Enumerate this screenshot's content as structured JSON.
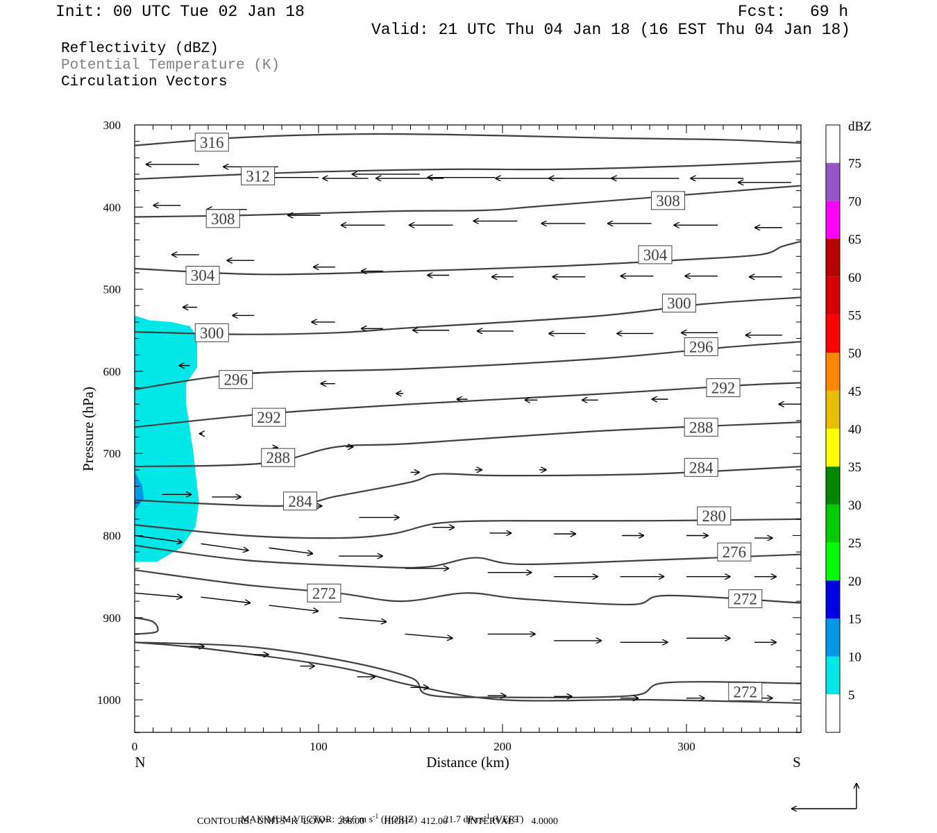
{
  "header": {
    "init": "Init: 00 UTC Tue 02 Jan 18",
    "fcst_label": "Fcst:",
    "fcst_value": "69 h",
    "valid": "Valid: 21 UTC Thu 04 Jan 18 (16 EST Thu 04 Jan 18)"
  },
  "legend": {
    "line1": "Reflectivity (dBZ)",
    "line2": "Potential Temperature (K)",
    "line3": "Circulation Vectors"
  },
  "footer": {
    "max_vector_prefix": "MAXIMUM VECTOR:",
    "horiz_value": "24.6 m s",
    "horiz_suffix": "(HORIZ)",
    "vert_value": "21.7 dPa s",
    "vert_suffix": "(VERT)",
    "exponent": "-1",
    "contours": "CONTOURS:  UNITS=K  LOW=   268.00        HIGH=   412.00        INTERVAL=     4.0000"
  },
  "chart_data": {
    "type": "contour",
    "xlabel": "Distance (km)",
    "ylabel": "Pressure (hPa)",
    "xlim": [
      0,
      362
    ],
    "ylim": [
      300,
      1040
    ],
    "x_ticks": [
      0,
      100,
      200,
      300
    ],
    "y_ticks": [
      300,
      400,
      500,
      600,
      700,
      800,
      900,
      1000
    ],
    "x_left_label": "N",
    "x_right_label": "S",
    "colorbar": {
      "unit": "dBZ",
      "levels": [
        5,
        10,
        15,
        20,
        25,
        30,
        35,
        40,
        45,
        50,
        55,
        60,
        65,
        70,
        75
      ],
      "colors": [
        "#00e8e8",
        "#0098e8",
        "#0000e8",
        "#00ff00",
        "#00cc00",
        "#008800",
        "#ffff00",
        "#e8c000",
        "#ff8800",
        "#ff0000",
        "#d80000",
        "#b80000",
        "#ff00ff",
        "#9855c8",
        "#ffffff"
      ]
    },
    "reflectivity_region": {
      "dbz": 5,
      "points": [
        [
          0,
          532
        ],
        [
          8,
          538
        ],
        [
          20,
          540
        ],
        [
          30,
          545
        ],
        [
          34,
          558
        ],
        [
          34,
          595
        ],
        [
          28,
          615
        ],
        [
          28,
          640
        ],
        [
          32,
          700
        ],
        [
          35,
          760
        ],
        [
          33,
          790
        ],
        [
          25,
          815
        ],
        [
          12,
          832
        ],
        [
          0,
          832
        ]
      ]
    },
    "reflectivity_inner": {
      "dbz": 10,
      "points": [
        [
          0,
          722
        ],
        [
          4,
          738
        ],
        [
          5,
          755
        ],
        [
          0,
          770
        ]
      ]
    },
    "contour_color": "#404040",
    "contours": [
      {
        "value": 316,
        "points": [
          [
            0,
            325
          ],
          [
            60,
            315
          ],
          [
            130,
            311
          ],
          [
            200,
            313
          ],
          [
            260,
            316
          ],
          [
            320,
            318
          ],
          [
            362,
            322
          ]
        ],
        "labels": [
          {
            "text": "316",
            "x": 42,
            "p": 321
          }
        ]
      },
      {
        "value": 312,
        "points": [
          [
            0,
            366
          ],
          [
            50,
            361
          ],
          [
            100,
            357
          ],
          [
            170,
            354
          ],
          [
            230,
            354
          ],
          [
            300,
            350
          ],
          [
            362,
            344
          ]
        ],
        "labels": [
          {
            "text": "312",
            "x": 67,
            "p": 362
          }
        ]
      },
      {
        "value": 308,
        "points": [
          [
            0,
            412
          ],
          [
            60,
            410
          ],
          [
            140,
            405
          ],
          [
            190,
            404
          ],
          [
            220,
            399
          ],
          [
            300,
            385
          ],
          [
            362,
            374
          ]
        ],
        "labels": [
          {
            "text": "308",
            "x": 48,
            "p": 414
          },
          {
            "text": "308",
            "x": 290,
            "p": 392
          }
        ]
      },
      {
        "value": 304,
        "points": [
          [
            0,
            475
          ],
          [
            70,
            482
          ],
          [
            150,
            478
          ],
          [
            230,
            472
          ],
          [
            300,
            464
          ],
          [
            340,
            458
          ],
          [
            352,
            448
          ],
          [
            362,
            442
          ]
        ],
        "labels": [
          {
            "text": "304",
            "x": 37,
            "p": 483
          },
          {
            "text": "304",
            "x": 283,
            "p": 458
          }
        ]
      },
      {
        "value": 300,
        "points": [
          [
            0,
            552
          ],
          [
            60,
            555
          ],
          [
            110,
            553
          ],
          [
            150,
            547
          ],
          [
            250,
            533
          ],
          [
            310,
            518
          ],
          [
            362,
            510
          ]
        ],
        "labels": [
          {
            "text": "300",
            "x": 42,
            "p": 553
          },
          {
            "text": "300",
            "x": 296,
            "p": 517
          }
        ]
      },
      {
        "value": 296,
        "points": [
          [
            0,
            622
          ],
          [
            60,
            603
          ],
          [
            150,
            597
          ],
          [
            250,
            585
          ],
          [
            320,
            571
          ],
          [
            362,
            564
          ]
        ],
        "labels": [
          {
            "text": "296",
            "x": 55,
            "p": 610
          },
          {
            "text": "296",
            "x": 308,
            "p": 570
          }
        ]
      },
      {
        "value": 292,
        "points": [
          [
            0,
            668
          ],
          [
            70,
            652
          ],
          [
            150,
            640
          ],
          [
            250,
            628
          ],
          [
            330,
            617
          ],
          [
            362,
            614
          ]
        ],
        "labels": [
          {
            "text": "292",
            "x": 73,
            "p": 656
          },
          {
            "text": "292",
            "x": 320,
            "p": 620
          }
        ]
      },
      {
        "value": 288,
        "points": [
          [
            0,
            716
          ],
          [
            70,
            712
          ],
          [
            110,
            692
          ],
          [
            150,
            688
          ],
          [
            250,
            673
          ],
          [
            330,
            665
          ],
          [
            362,
            662
          ]
        ],
        "labels": [
          {
            "text": "288",
            "x": 78,
            "p": 705
          },
          {
            "text": "288",
            "x": 308,
            "p": 668
          }
        ]
      },
      {
        "value": 284,
        "points": [
          [
            0,
            757
          ],
          [
            80,
            764
          ],
          [
            110,
            752
          ],
          [
            150,
            735
          ],
          [
            165,
            725
          ],
          [
            200,
            727
          ],
          [
            280,
            725
          ],
          [
            362,
            716
          ]
        ],
        "labels": [
          {
            "text": "284",
            "x": 90,
            "p": 758
          },
          {
            "text": "284",
            "x": 308,
            "p": 717
          }
        ]
      },
      {
        "value": 280,
        "points": [
          [
            0,
            787
          ],
          [
            60,
            800
          ],
          [
            110,
            803
          ],
          [
            140,
            798
          ],
          [
            165,
            785
          ],
          [
            200,
            782
          ],
          [
            280,
            782
          ],
          [
            362,
            780
          ]
        ],
        "labels": [
          {
            "text": "280",
            "x": 315,
            "p": 776
          }
        ]
      },
      {
        "value": 276,
        "points": [
          [
            0,
            812
          ],
          [
            60,
            830
          ],
          [
            130,
            838
          ],
          [
            160,
            838
          ],
          [
            185,
            827
          ],
          [
            210,
            835
          ],
          [
            280,
            830
          ],
          [
            362,
            823
          ]
        ],
        "labels": [
          {
            "text": "276",
            "x": 326,
            "p": 820
          }
        ]
      },
      {
        "value": 272,
        "points": [
          [
            0,
            842
          ],
          [
            60,
            860
          ],
          [
            110,
            870
          ],
          [
            145,
            880
          ],
          [
            180,
            870
          ],
          [
            210,
            877
          ],
          [
            270,
            884
          ],
          [
            290,
            873
          ],
          [
            362,
            882
          ]
        ],
        "labels": [
          {
            "text": "272",
            "x": 103,
            "p": 870
          },
          {
            "text": "272",
            "x": 332,
            "p": 877
          }
        ]
      },
      {
        "value": 272,
        "points": [
          [
            0,
            930
          ],
          [
            60,
            935
          ],
          [
            110,
            951
          ],
          [
            150,
            973
          ],
          [
            160,
            994
          ],
          [
            200,
            997
          ],
          [
            270,
            995
          ],
          [
            290,
            979
          ],
          [
            362,
            980
          ]
        ],
        "labels": [
          {
            "text": "272",
            "x": 332,
            "p": 990
          }
        ]
      },
      {
        "value": 0,
        "points": [
          [
            0,
            930
          ],
          [
            40,
            938
          ],
          [
            110,
            960
          ],
          [
            150,
            982
          ],
          [
            200,
            1000
          ],
          [
            280,
            1000
          ],
          [
            362,
            1004
          ]
        ],
        "labels": []
      },
      {
        "value": 0,
        "points": [
          [
            0,
            900
          ],
          [
            10,
            905
          ],
          [
            12,
            917
          ],
          [
            0,
            920
          ]
        ],
        "labels": []
      }
    ],
    "vectors": [
      [
        35,
        348,
        -29,
        0
      ],
      [
        78,
        351,
        -30,
        0
      ],
      [
        100,
        364,
        -37,
        0
      ],
      [
        127,
        365,
        -25,
        0
      ],
      [
        155,
        360,
        -37,
        0
      ],
      [
        168,
        365,
        -37,
        0
      ],
      [
        196,
        364,
        -37,
        0
      ],
      [
        233,
        365,
        -37,
        0
      ],
      [
        262,
        365,
        -37,
        0
      ],
      [
        296,
        365,
        -37,
        0
      ],
      [
        331,
        365,
        -29,
        0
      ],
      [
        357,
        370,
        -29,
        0
      ],
      [
        25,
        398,
        -15,
        0
      ],
      [
        61,
        403,
        -22,
        0
      ],
      [
        101,
        410,
        -18,
        0
      ],
      [
        136,
        422,
        -24,
        0
      ],
      [
        173,
        422,
        -24,
        0
      ],
      [
        208,
        417,
        -24,
        0
      ],
      [
        245,
        420,
        -24,
        0
      ],
      [
        281,
        420,
        -24,
        0
      ],
      [
        317,
        422,
        -24,
        0
      ],
      [
        352,
        425,
        -15,
        0
      ],
      [
        35,
        458,
        -15,
        0
      ],
      [
        65,
        465,
        -15,
        0
      ],
      [
        109,
        473,
        -12,
        0
      ],
      [
        135,
        478,
        -12,
        0
      ],
      [
        171,
        483,
        -12,
        0
      ],
      [
        206,
        485,
        -12,
        0
      ],
      [
        245,
        485,
        -18,
        0
      ],
      [
        282,
        484,
        -18,
        0
      ],
      [
        317,
        484,
        -18,
        0
      ],
      [
        352,
        485,
        -18,
        0
      ],
      [
        34,
        522,
        -8,
        0
      ],
      [
        65,
        532,
        -12,
        0
      ],
      [
        109,
        540,
        -13,
        0
      ],
      [
        135,
        548,
        -12,
        0
      ],
      [
        171,
        550,
        -20,
        0
      ],
      [
        206,
        551,
        -20,
        0
      ],
      [
        245,
        554,
        -20,
        0
      ],
      [
        282,
        554,
        -20,
        0
      ],
      [
        317,
        553,
        -20,
        0
      ],
      [
        352,
        556,
        -20,
        0
      ],
      [
        30,
        593,
        -6,
        0
      ],
      [
        68,
        602,
        -8,
        0
      ],
      [
        109,
        615,
        -8,
        0
      ],
      [
        146,
        627,
        -4,
        0
      ],
      [
        181,
        634,
        -6,
        0
      ],
      [
        219,
        635,
        -7,
        0
      ],
      [
        252,
        635,
        -9,
        0
      ],
      [
        290,
        634,
        -9,
        0
      ],
      [
        362,
        640,
        -12,
        0
      ],
      [
        37,
        676,
        -2,
        0
      ],
      [
        75,
        693,
        3,
        0
      ],
      [
        115,
        692,
        4,
        0
      ],
      [
        150,
        723,
        5,
        0
      ],
      [
        185,
        720,
        4,
        0
      ],
      [
        220,
        720,
        4,
        0
      ],
      [
        15,
        750,
        16,
        0
      ],
      [
        42,
        753,
        16,
        0
      ],
      [
        86,
        764,
        16,
        0
      ],
      [
        122,
        778,
        22,
        0
      ],
      [
        162,
        790,
        12,
        0
      ],
      [
        193,
        797,
        12,
        0
      ],
      [
        228,
        798,
        12,
        0
      ],
      [
        265,
        800,
        12,
        0
      ],
      [
        300,
        800,
        12,
        0
      ],
      [
        337,
        803,
        10,
        0
      ],
      [
        0,
        800,
        26,
        8
      ],
      [
        36,
        810,
        26,
        8
      ],
      [
        73,
        815,
        24,
        7
      ],
      [
        111,
        825,
        24,
        0
      ],
      [
        147,
        840,
        24,
        0
      ],
      [
        192,
        845,
        24,
        0
      ],
      [
        228,
        850,
        24,
        0
      ],
      [
        264,
        850,
        24,
        0
      ],
      [
        300,
        850,
        24,
        0
      ],
      [
        337,
        850,
        12,
        0
      ],
      [
        0,
        870,
        26,
        5
      ],
      [
        36,
        875,
        27,
        7
      ],
      [
        73,
        885,
        27,
        7
      ],
      [
        111,
        900,
        26,
        5
      ],
      [
        147,
        920,
        26,
        5
      ],
      [
        192,
        920,
        26,
        0
      ],
      [
        228,
        928,
        26,
        0
      ],
      [
        264,
        930,
        26,
        0
      ],
      [
        300,
        925,
        24,
        0
      ],
      [
        337,
        930,
        12,
        0
      ],
      [
        30,
        935,
        8,
        0
      ],
      [
        65,
        945,
        8,
        0
      ],
      [
        90,
        959,
        8,
        0
      ],
      [
        121,
        972,
        10,
        0
      ],
      [
        150,
        985,
        10,
        0
      ],
      [
        192,
        995,
        10,
        0
      ],
      [
        228,
        996,
        10,
        0
      ],
      [
        264,
        998,
        10,
        0
      ],
      [
        300,
        998,
        10,
        0
      ],
      [
        337,
        998,
        10,
        0
      ]
    ]
  },
  "max_vector_glyph": "vector-key"
}
